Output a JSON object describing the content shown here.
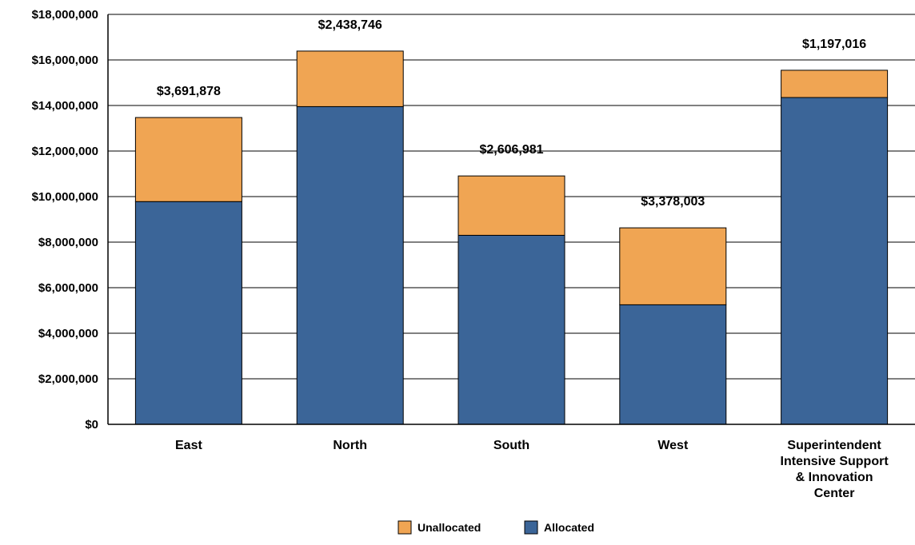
{
  "chart_data": {
    "type": "bar",
    "stacked": true,
    "categories": [
      "East",
      "North",
      "South",
      "West",
      "Superintendent Intensive Support & Innovation Center"
    ],
    "category_lines": [
      [
        "East"
      ],
      [
        "North"
      ],
      [
        "South"
      ],
      [
        "West"
      ],
      [
        "Superintendent",
        "Intensive Support",
        "& Innovation",
        "Center"
      ]
    ],
    "series": [
      {
        "name": "Allocated",
        "color": "#3b6598",
        "values": [
          9780000,
          13950000,
          8300000,
          5250000,
          14350000
        ]
      },
      {
        "name": "Unallocated",
        "color": "#f0a553",
        "values": [
          3691878,
          2438746,
          2606981,
          3378003,
          1197016
        ]
      }
    ],
    "data_labels": [
      "$3,691,878",
      "$2,438,746",
      "$2,606,981",
      "$3,378,003",
      "$1,197,016"
    ],
    "yticks": [
      "$0",
      "$2,000,000",
      "$4,000,000",
      "$6,000,000",
      "$8,000,000",
      "$10,000,000",
      "$12,000,000",
      "$14,000,000",
      "$16,000,000",
      "$18,000,000"
    ],
    "ylim": [
      0,
      18000000
    ],
    "grid": true,
    "legend_position": "bottom-center",
    "legend_order": [
      "Unallocated",
      "Allocated"
    ],
    "title": "",
    "xlabel": "",
    "ylabel": ""
  }
}
